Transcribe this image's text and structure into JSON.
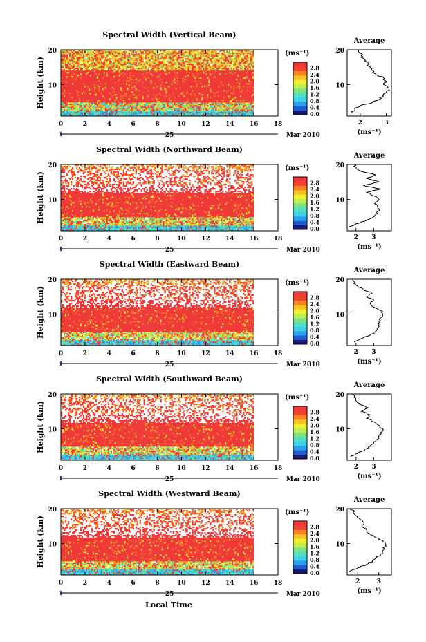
{
  "figure": {
    "month_label": "Mar 2010",
    "day_label": "25",
    "xlabel": "Local Time",
    "cbar_unit": "(ms⁻¹)",
    "cbar_ticks": [
      "2.8",
      "2.4",
      "2.0",
      "1.6",
      "1.2",
      "0.8",
      "0.4",
      "0.0"
    ],
    "avg_title": "Average",
    "avg_xlabel": "(ms⁻¹)",
    "ylabel": "Height (km)",
    "colors": {
      "palette": [
        "#1a1a7a",
        "#1f5fd0",
        "#2aa0ee",
        "#3fd0e8",
        "#50e0c0",
        "#80e080",
        "#c0ee50",
        "#f0f030",
        "#f8c020",
        "#f88020",
        "#f04030",
        "#f03a3a"
      ],
      "white": "#ffffff"
    }
  },
  "chart_data": [
    {
      "type": "heatmap",
      "title": "Spectral Width (Vertical Beam)",
      "xlabel": "",
      "ylabel": "Height (km)",
      "xlim": [
        0,
        18
      ],
      "ylim": [
        1,
        20
      ],
      "x_ticks": [
        "0",
        "2",
        "4",
        "6",
        "8",
        "10",
        "12",
        "14",
        "16",
        "18"
      ],
      "y_ticks": [
        "20",
        "10"
      ],
      "data_x_range": [
        0,
        16
      ],
      "colorbar_range": [
        0.0,
        2.8
      ],
      "average": {
        "xlim": [
          1.5,
          3.2
        ],
        "x_ticks": [
          "2",
          "3"
        ],
        "y_ticks": [
          "20",
          "10"
        ],
        "profile": [
          [
            1.7,
            2
          ],
          [
            1.8,
            3
          ],
          [
            2.0,
            4
          ],
          [
            2.5,
            5
          ],
          [
            2.8,
            6
          ],
          [
            2.9,
            7
          ],
          [
            3.0,
            8
          ],
          [
            3.1,
            9
          ],
          [
            2.9,
            10
          ],
          [
            3.0,
            11
          ],
          [
            2.9,
            12
          ],
          [
            2.6,
            13
          ],
          [
            2.5,
            14
          ],
          [
            2.4,
            15
          ],
          [
            2.3,
            16
          ],
          [
            2.2,
            17
          ],
          [
            2.1,
            18
          ],
          [
            2.0,
            19
          ],
          [
            1.9,
            20
          ]
        ]
      }
    },
    {
      "type": "heatmap",
      "title": "Spectral Width (Northward Beam)",
      "xlabel": "",
      "ylabel": "Height (km)",
      "xlim": [
        0,
        18
      ],
      "ylim": [
        1,
        20
      ],
      "x_ticks": [
        "0",
        "2",
        "4",
        "6",
        "8",
        "10",
        "12",
        "14",
        "16",
        "18"
      ],
      "y_ticks": [
        "20",
        "10"
      ],
      "data_x_range": [
        0,
        16
      ],
      "colorbar_range": [
        0.0,
        2.8
      ],
      "average": {
        "xlim": [
          1.5,
          4.0
        ],
        "x_ticks": [
          "2",
          "3"
        ],
        "y_ticks": [
          "20",
          "10"
        ],
        "profile": [
          [
            1.6,
            2
          ],
          [
            2.0,
            3
          ],
          [
            2.6,
            4
          ],
          [
            3.0,
            5
          ],
          [
            3.2,
            6
          ],
          [
            3.3,
            7
          ],
          [
            3.2,
            8
          ],
          [
            3.1,
            9
          ],
          [
            3.3,
            10
          ],
          [
            3.0,
            11
          ],
          [
            2.6,
            12
          ],
          [
            3.4,
            13
          ],
          [
            2.4,
            14
          ],
          [
            3.3,
            15
          ],
          [
            2.6,
            16
          ],
          [
            3.1,
            17
          ],
          [
            2.3,
            18
          ],
          [
            2.0,
            19
          ],
          [
            1.9,
            20
          ]
        ]
      }
    },
    {
      "type": "heatmap",
      "title": "Spectral Width (Eastward Beam)",
      "xlabel": "",
      "ylabel": "Height (km)",
      "xlim": [
        0,
        18
      ],
      "ylim": [
        1,
        20
      ],
      "x_ticks": [
        "0",
        "2",
        "4",
        "6",
        "8",
        "10",
        "12",
        "14",
        "16",
        "18"
      ],
      "y_ticks": [
        "20",
        "10"
      ],
      "data_x_range": [
        0,
        16
      ],
      "colorbar_range": [
        0.0,
        2.8
      ],
      "average": {
        "xlim": [
          1.5,
          4.0
        ],
        "x_ticks": [
          "2",
          "3"
        ],
        "y_ticks": [
          "20",
          "10"
        ],
        "profile": [
          [
            1.9,
            2
          ],
          [
            2.3,
            3
          ],
          [
            2.8,
            4
          ],
          [
            3.1,
            5
          ],
          [
            3.2,
            6
          ],
          [
            3.3,
            7
          ],
          [
            3.3,
            8
          ],
          [
            3.4,
            9
          ],
          [
            3.5,
            10
          ],
          [
            3.4,
            11
          ],
          [
            3.0,
            12
          ],
          [
            2.8,
            13
          ],
          [
            3.0,
            14
          ],
          [
            2.6,
            15
          ],
          [
            2.9,
            16
          ],
          [
            2.4,
            17
          ],
          [
            2.1,
            18
          ],
          [
            1.9,
            19
          ],
          [
            1.8,
            20
          ]
        ]
      }
    },
    {
      "type": "heatmap",
      "title": "Spectral Width (Southward Beam)",
      "xlabel": "",
      "ylabel": "Height (km)",
      "xlim": [
        0,
        18
      ],
      "ylim": [
        1,
        20
      ],
      "x_ticks": [
        "0",
        "2",
        "4",
        "6",
        "8",
        "10",
        "12",
        "14",
        "16",
        "18"
      ],
      "y_ticks": [
        "20",
        "10"
      ],
      "data_x_range": [
        0,
        16
      ],
      "colorbar_range": [
        0.0,
        2.8
      ],
      "average": {
        "xlim": [
          1.5,
          4.0
        ],
        "x_ticks": [
          "2",
          "3"
        ],
        "y_ticks": [
          "20",
          "10"
        ],
        "profile": [
          [
            1.7,
            2
          ],
          [
            2.1,
            3
          ],
          [
            2.5,
            4
          ],
          [
            2.8,
            5
          ],
          [
            3.0,
            6
          ],
          [
            3.2,
            7
          ],
          [
            3.3,
            8
          ],
          [
            3.4,
            9
          ],
          [
            3.5,
            10
          ],
          [
            3.3,
            11
          ],
          [
            3.0,
            12
          ],
          [
            2.6,
            13
          ],
          [
            2.8,
            14
          ],
          [
            2.3,
            15
          ],
          [
            2.7,
            16
          ],
          [
            2.2,
            17
          ],
          [
            2.0,
            18
          ],
          [
            1.9,
            19
          ],
          [
            1.8,
            20
          ]
        ]
      }
    },
    {
      "type": "heatmap",
      "title": "Spectral Width (Westward Beam)",
      "xlabel": "Local Time",
      "ylabel": "Height (km)",
      "xlim": [
        0,
        18
      ],
      "ylim": [
        1,
        20
      ],
      "x_ticks": [
        "0",
        "2",
        "4",
        "6",
        "8",
        "10",
        "12",
        "14",
        "16",
        "18"
      ],
      "y_ticks": [
        "20",
        "10"
      ],
      "data_x_range": [
        0,
        16
      ],
      "colorbar_range": [
        0.0,
        2.8
      ],
      "average": {
        "xlim": [
          1.5,
          3.6
        ],
        "x_ticks": [
          "2",
          "3"
        ],
        "y_ticks": [
          "20",
          "10"
        ],
        "profile": [
          [
            1.6,
            2
          ],
          [
            2.0,
            3
          ],
          [
            2.4,
            4
          ],
          [
            2.7,
            5
          ],
          [
            2.9,
            6
          ],
          [
            3.1,
            7
          ],
          [
            3.2,
            8
          ],
          [
            3.3,
            9
          ],
          [
            3.3,
            10
          ],
          [
            3.1,
            11
          ],
          [
            2.8,
            12
          ],
          [
            2.5,
            13
          ],
          [
            2.4,
            14
          ],
          [
            2.2,
            15
          ],
          [
            2.3,
            16
          ],
          [
            2.1,
            17
          ],
          [
            1.9,
            18
          ],
          [
            1.8,
            19
          ],
          [
            1.7,
            20
          ]
        ]
      }
    }
  ]
}
